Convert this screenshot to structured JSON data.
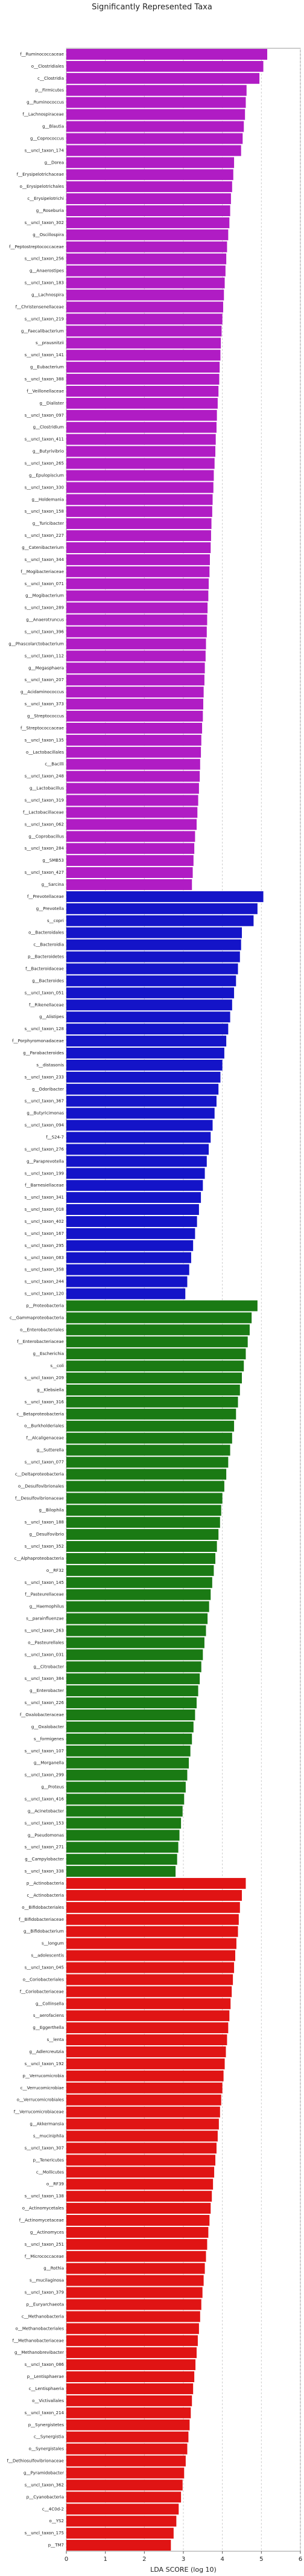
{
  "chart_data": {
    "type": "barh",
    "title": "Significantly Represented Taxa",
    "xlabel": "LDA SCORE (log 10)",
    "xlim": [
      0,
      6
    ],
    "xticks": [
      0,
      1,
      2,
      3,
      4,
      5,
      6
    ],
    "grid": true,
    "groups": [
      {
        "color": "#b01cc4",
        "categories": [
          "f__Ruminococcaceae",
          "o__Clostridiales",
          "c__Clostridia",
          "p__Firmicutes",
          "g__Ruminococcus",
          "f__Lachnospiraceae",
          "g__Blautia",
          "g__Coprococcus",
          "s__uncl_taxon_174",
          "g__Dorea",
          "f__Erysipelotrichaceae",
          "o__Erysipelotrichales",
          "c__Erysipelotrichi",
          "g__Roseburia",
          "s__uncl_taxon_302",
          "g__Oscillospira",
          "f__Peptostreptococcaceae",
          "s__uncl_taxon_256",
          "g__Anaerostipes",
          "s__uncl_taxon_183",
          "g__Lachnospira",
          "f__Christensenellaceae",
          "s__uncl_taxon_219",
          "g__Faecalibacterium",
          "s__prausnitzii",
          "s__uncl_taxon_141",
          "g__Eubacterium",
          "s__uncl_taxon_388",
          "f__Veillonellaceae",
          "g__Dialister",
          "s__uncl_taxon_097",
          "g__Clostridium",
          "s__uncl_taxon_411",
          "g__Butyrivibrio",
          "s__uncl_taxon_265",
          "g__Epulopiscium",
          "s__uncl_taxon_330",
          "g__Holdemania",
          "s__uncl_taxon_158",
          "g__Turicibacter",
          "s__uncl_taxon_227",
          "g__Catenibacterium",
          "s__uncl_taxon_344",
          "f__Mogibacteriaceae",
          "s__uncl_taxon_071",
          "g__Mogibacterium",
          "s__uncl_taxon_289",
          "g__Anaerotruncus",
          "s__uncl_taxon_396",
          "g__Phascolarctobacterium",
          "s__uncl_taxon_112",
          "g__Megasphaera",
          "s__uncl_taxon_207",
          "g__Acidaminococcus",
          "s__uncl_taxon_373",
          "g__Streptococcus",
          "f__Streptococcaceae",
          "s__uncl_taxon_135",
          "o__Lactobacillales",
          "c__Bacilli",
          "s__uncl_taxon_248",
          "g__Lactobacillus",
          "s__uncl_taxon_319",
          "f__Lactobacillaceae",
          "s__uncl_taxon_062",
          "g__Coprobacillus",
          "s__uncl_taxon_284",
          "g__SMB53",
          "s__uncl_taxon_427",
          "g__Sarcina"
        ],
        "values": [
          5.15,
          5.05,
          4.95,
          4.62,
          4.6,
          4.58,
          4.55,
          4.52,
          4.48,
          4.3,
          4.28,
          4.25,
          4.22,
          4.2,
          4.18,
          4.15,
          4.12,
          4.1,
          4.08,
          4.06,
          4.04,
          4.02,
          4.0,
          3.98,
          3.96,
          3.95,
          3.93,
          3.92,
          3.9,
          3.88,
          3.86,
          3.85,
          3.83,
          3.82,
          3.8,
          3.78,
          3.77,
          3.75,
          3.74,
          3.72,
          3.71,
          3.7,
          3.68,
          3.67,
          3.65,
          3.64,
          3.62,
          3.61,
          3.6,
          3.58,
          3.57,
          3.55,
          3.54,
          3.52,
          3.51,
          3.5,
          3.48,
          3.46,
          3.45,
          3.43,
          3.42,
          3.4,
          3.38,
          3.36,
          3.34,
          3.3,
          3.28,
          3.26,
          3.24,
          3.22
        ]
      },
      {
        "color": "#1414c8",
        "categories": [
          "f__Prevotellaceae",
          "g__Prevotella",
          "s__copri",
          "o__Bacteroidales",
          "c__Bacteroidia",
          "p__Bacteroidetes",
          "f__Bacteroidaceae",
          "g__Bacteroides",
          "s__uncl_taxon_051",
          "f__Rikenellaceae",
          "g__Alistipes",
          "s__uncl_taxon_128",
          "f__Porphyromonadaceae",
          "g__Parabacteroides",
          "s__distasonis",
          "s__uncl_taxon_233",
          "g__Odoribacter",
          "s__uncl_taxon_367",
          "g__Butyricimonas",
          "s__uncl_taxon_094",
          "f__S24-7",
          "s__uncl_taxon_276",
          "g__Paraprevotella",
          "s__uncl_taxon_199",
          "f__Barnesiellaceae",
          "s__uncl_taxon_341",
          "s__uncl_taxon_018",
          "s__uncl_taxon_402",
          "s__uncl_taxon_167",
          "s__uncl_taxon_295",
          "s__uncl_taxon_083",
          "s__uncl_taxon_358",
          "s__uncl_taxon_244",
          "s__uncl_taxon_120"
        ],
        "values": [
          5.05,
          4.9,
          4.8,
          4.5,
          4.48,
          4.45,
          4.4,
          4.35,
          4.3,
          4.25,
          4.2,
          4.15,
          4.1,
          4.05,
          4.0,
          3.95,
          3.9,
          3.85,
          3.8,
          3.75,
          3.7,
          3.65,
          3.6,
          3.55,
          3.5,
          3.45,
          3.4,
          3.35,
          3.3,
          3.25,
          3.2,
          3.15,
          3.1,
          3.05
        ]
      },
      {
        "color": "#1a7a14",
        "categories": [
          "p__Proteobacteria",
          "c__Gammaproteobacteria",
          "o__Enterobacteriales",
          "f__Enterobacteriaceae",
          "g__Escherichia",
          "s__coli",
          "s__uncl_taxon_209",
          "g__Klebsiella",
          "s__uncl_taxon_316",
          "c__Betaproteobacteria",
          "o__Burkholderiales",
          "f__Alcaligenaceae",
          "g__Sutterella",
          "s__uncl_taxon_077",
          "c__Deltaproteobacteria",
          "o__Desulfovibrionales",
          "f__Desulfovibrionaceae",
          "g__Bilophila",
          "s__uncl_taxon_188",
          "g__Desulfovibrio",
          "s__uncl_taxon_352",
          "c__Alphaproteobacteria",
          "o__RF32",
          "s__uncl_taxon_145",
          "f__Pasteurellaceae",
          "g__Haemophilus",
          "s__parainfluenzae",
          "s__uncl_taxon_263",
          "o__Pasteurellales",
          "s__uncl_taxon_031",
          "g__Citrobacter",
          "s__uncl_taxon_384",
          "g__Enterobacter",
          "s__uncl_taxon_226",
          "f__Oxalobacteraceae",
          "g__Oxalobacter",
          "s__formigenes",
          "s__uncl_taxon_107",
          "g__Morganella",
          "s__uncl_taxon_299",
          "g__Proteus",
          "s__uncl_taxon_416",
          "g__Acinetobacter",
          "s__uncl_taxon_153",
          "g__Pseudomonas",
          "s__uncl_taxon_271",
          "g__Campylobacter",
          "s__uncl_taxon_338"
        ],
        "values": [
          4.9,
          4.75,
          4.7,
          4.65,
          4.6,
          4.55,
          4.5,
          4.45,
          4.4,
          4.35,
          4.3,
          4.25,
          4.2,
          4.15,
          4.1,
          4.05,
          4.0,
          3.97,
          3.94,
          3.9,
          3.86,
          3.82,
          3.78,
          3.74,
          3.7,
          3.66,
          3.62,
          3.58,
          3.54,
          3.5,
          3.46,
          3.42,
          3.38,
          3.34,
          3.3,
          3.26,
          3.22,
          3.18,
          3.14,
          3.1,
          3.06,
          3.02,
          2.98,
          2.94,
          2.9,
          2.87,
          2.84,
          2.8
        ]
      },
      {
        "color": "#e01414",
        "categories": [
          "p__Actinobacteria",
          "c__Actinobacteria",
          "o__Bifidobacteriales",
          "f__Bifidobacteriaceae",
          "g__Bifidobacterium",
          "s__longum",
          "s__adolescentis",
          "s__uncl_taxon_045",
          "o__Coriobacteriales",
          "f__Coriobacteriaceae",
          "g__Collinsella",
          "s__aerofaciens",
          "g__Eggerthella",
          "s__lenta",
          "g__Adlercreutzia",
          "s__uncl_taxon_192",
          "p__Verrucomicrobia",
          "c__Verrucomicrobiae",
          "o__Verrucomicrobiales",
          "f__Verrucomicrobiaceae",
          "g__Akkermansia",
          "s__muciniphila",
          "s__uncl_taxon_307",
          "p__Tenericutes",
          "c__Mollicutes",
          "o__RF39",
          "s__uncl_taxon_138",
          "o__Actinomycetales",
          "f__Actinomycetaceae",
          "g__Actinomyces",
          "s__uncl_taxon_251",
          "f__Micrococcaceae",
          "g__Rothia",
          "s__mucilaginosa",
          "s__uncl_taxon_379",
          "p__Euryarchaeota",
          "c__Methanobacteria",
          "o__Methanobacteriales",
          "f__Methanobacteriaceae",
          "g__Methanobrevibacter",
          "s__uncl_taxon_086",
          "p__Lentisphaerae",
          "c__Lentisphaeria",
          "o__Victivallales",
          "s__uncl_taxon_214",
          "p__Synergistetes",
          "c__Synergistia",
          "o__Synergistales",
          "f__Dethiosulfovibrionaceae",
          "g__Pyramidobacter",
          "s__uncl_taxon_362",
          "p__Cyanobacteria",
          "c__4C0d-2",
          "o__YS2",
          "s__uncl_taxon_175",
          "p__TM7"
        ],
        "values": [
          4.6,
          4.5,
          4.45,
          4.42,
          4.4,
          4.36,
          4.33,
          4.3,
          4.27,
          4.24,
          4.21,
          4.18,
          4.15,
          4.12,
          4.09,
          4.06,
          4.03,
          4.0,
          3.97,
          3.94,
          3.91,
          3.88,
          3.85,
          3.82,
          3.79,
          3.76,
          3.73,
          3.7,
          3.67,
          3.64,
          3.61,
          3.58,
          3.55,
          3.52,
          3.49,
          3.46,
          3.43,
          3.4,
          3.37,
          3.34,
          3.31,
          3.28,
          3.25,
          3.22,
          3.19,
          3.16,
          3.13,
          3.1,
          3.06,
          3.02,
          2.98,
          2.94,
          2.88,
          2.82,
          2.75,
          2.68
        ]
      }
    ]
  }
}
